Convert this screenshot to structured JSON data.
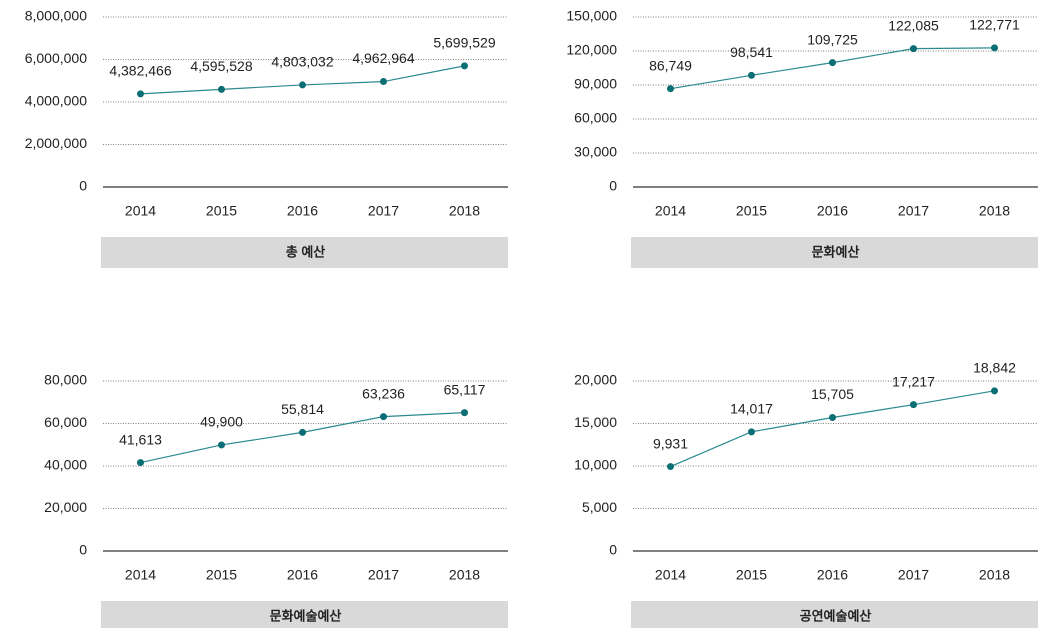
{
  "chart_data": [
    {
      "type": "line",
      "title": "총 예산",
      "categories": [
        "2014",
        "2015",
        "2016",
        "2017",
        "2018"
      ],
      "values": [
        4382466,
        4595528,
        4803032,
        4962964,
        5699529
      ],
      "value_labels": [
        "4,382,466",
        "4,595,528",
        "4,803,032",
        "4,962,964",
        "5,699,529"
      ],
      "color": "#2a8a8f",
      "ylim": [
        0,
        8000000
      ],
      "yticks": [
        0,
        {
          "value": 2000000,
          "label": "2,000,000"
        },
        {
          "value": 4000000,
          "label": "4,000,000"
        },
        {
          "value": 6000000,
          "label": "6,000,000"
        },
        {
          "value": 8000000,
          "label": "8,000,000"
        }
      ],
      "grid": true
    },
    {
      "type": "line",
      "title": "문화예산",
      "categories": [
        "2014",
        "2015",
        "2016",
        "2017",
        "2018"
      ],
      "values": [
        86749,
        98541,
        109725,
        122085,
        122771
      ],
      "value_labels": [
        "86,749",
        "98,541",
        "109,725",
        "122,085",
        "122,771"
      ],
      "color": "#2a8a8f",
      "ylim": [
        0,
        150000
      ],
      "yticks": [
        0,
        {
          "value": 30000,
          "label": "30,000"
        },
        {
          "value": 60000,
          "label": "60,000"
        },
        {
          "value": 90000,
          "label": "90,000"
        },
        {
          "value": 120000,
          "label": "120,000"
        },
        {
          "value": 150000,
          "label": "150,000"
        }
      ],
      "grid": true
    },
    {
      "type": "line",
      "title": "문화예술예산",
      "categories": [
        "2014",
        "2015",
        "2016",
        "2017",
        "2018"
      ],
      "values": [
        41613,
        49900,
        55814,
        63236,
        65117
      ],
      "value_labels": [
        "41,613",
        "49,900",
        "55,814",
        "63,236",
        "65,117"
      ],
      "color": "#2a8a8f",
      "ylim": [
        0,
        80000
      ],
      "yticks": [
        0,
        {
          "value": 20000,
          "label": "20,000"
        },
        {
          "value": 40000,
          "label": "40,000"
        },
        {
          "value": 60000,
          "label": "60,000"
        },
        {
          "value": 80000,
          "label": "80,000"
        }
      ],
      "grid": true
    },
    {
      "type": "line",
      "title": "공연예술예산",
      "categories": [
        "2014",
        "2015",
        "2016",
        "2017",
        "2018"
      ],
      "values": [
        9931,
        14017,
        15705,
        17217,
        18842
      ],
      "value_labels": [
        "9,931",
        "14,017",
        "15,705",
        "17,217",
        "18,842"
      ],
      "color": "#2a8a8f",
      "ylim": [
        0,
        20000
      ],
      "yticks": [
        0,
        {
          "value": 5000,
          "label": "5,000"
        },
        {
          "value": 10000,
          "label": "10,000"
        },
        {
          "value": 15000,
          "label": "15,000"
        },
        {
          "value": 20000,
          "label": "20,000"
        }
      ],
      "grid": true
    }
  ]
}
